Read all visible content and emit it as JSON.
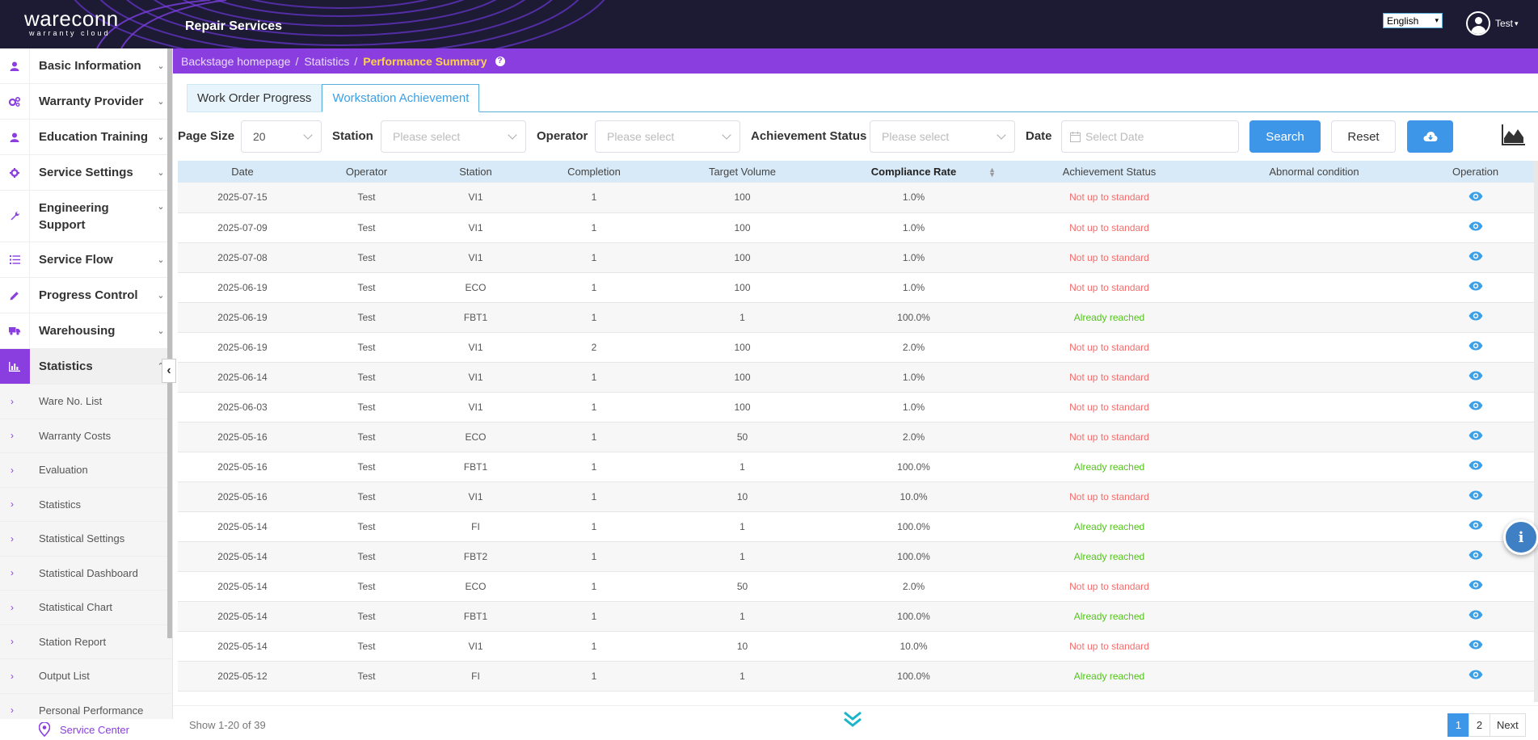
{
  "header": {
    "brand": "wareconn",
    "brand_sub": "warranty cloud",
    "app_title": "Repair Services",
    "language": "English",
    "user": "Test"
  },
  "sidebar": {
    "items": [
      {
        "label": "Basic Information",
        "icon": "user-icon"
      },
      {
        "label": "Warranty Provider",
        "icon": "gears-icon"
      },
      {
        "label": "Education Training",
        "icon": "user-icon"
      },
      {
        "label": "Service Settings",
        "icon": "gear-icon"
      },
      {
        "label": "Engineering Support",
        "icon": "wrench-icon"
      },
      {
        "label": "Service Flow",
        "icon": "list-icon"
      },
      {
        "label": "Progress Control",
        "icon": "pencil-icon"
      },
      {
        "label": "Warehousing",
        "icon": "truck-icon"
      },
      {
        "label": "Statistics",
        "icon": "bar-chart-icon"
      }
    ],
    "sub_items": [
      "Ware No. List",
      "Warranty Costs",
      "Evaluation",
      "Statistics",
      "Statistical Settings",
      "Statistical Dashboard",
      "Statistical Chart",
      "Station Report",
      "Output List",
      "Personal Performance"
    ],
    "service_center": "Service Center"
  },
  "breadcrumb": {
    "home": "Backstage homepage",
    "parent": "Statistics",
    "current": "Performance Summary",
    "help": "?"
  },
  "tabs": [
    "Work Order Progress",
    "Workstation Achievement"
  ],
  "filters": {
    "page_size_label": "Page Size",
    "page_size_value": "20",
    "station_label": "Station",
    "station_placeholder": "Please select",
    "operator_label": "Operator",
    "operator_placeholder": "Please select",
    "status_label": "Achievement Status",
    "status_placeholder": "Please select",
    "date_label": "Date",
    "date_placeholder": "Select Date",
    "search_label": "Search",
    "reset_label": "Reset"
  },
  "table": {
    "columns": [
      "Date",
      "Operator",
      "Station",
      "Completion",
      "Target Volume",
      "Compliance Rate",
      "Achievement Status",
      "Abnormal condition",
      "Operation"
    ],
    "rows": [
      {
        "date": "2025-07-15",
        "operator": "Test",
        "station": "VI1",
        "completion": "1",
        "target": "100",
        "rate": "1.0%",
        "status": "Not up to standard",
        "ok": false
      },
      {
        "date": "2025-07-09",
        "operator": "Test",
        "station": "VI1",
        "completion": "1",
        "target": "100",
        "rate": "1.0%",
        "status": "Not up to standard",
        "ok": false
      },
      {
        "date": "2025-07-08",
        "operator": "Test",
        "station": "VI1",
        "completion": "1",
        "target": "100",
        "rate": "1.0%",
        "status": "Not up to standard",
        "ok": false
      },
      {
        "date": "2025-06-19",
        "operator": "Test",
        "station": "ECO",
        "completion": "1",
        "target": "100",
        "rate": "1.0%",
        "status": "Not up to standard",
        "ok": false
      },
      {
        "date": "2025-06-19",
        "operator": "Test",
        "station": "FBT1",
        "completion": "1",
        "target": "1",
        "rate": "100.0%",
        "status": "Already reached",
        "ok": true
      },
      {
        "date": "2025-06-19",
        "operator": "Test",
        "station": "VI1",
        "completion": "2",
        "target": "100",
        "rate": "2.0%",
        "status": "Not up to standard",
        "ok": false
      },
      {
        "date": "2025-06-14",
        "operator": "Test",
        "station": "VI1",
        "completion": "1",
        "target": "100",
        "rate": "1.0%",
        "status": "Not up to standard",
        "ok": false
      },
      {
        "date": "2025-06-03",
        "operator": "Test",
        "station": "VI1",
        "completion": "1",
        "target": "100",
        "rate": "1.0%",
        "status": "Not up to standard",
        "ok": false
      },
      {
        "date": "2025-05-16",
        "operator": "Test",
        "station": "ECO",
        "completion": "1",
        "target": "50",
        "rate": "2.0%",
        "status": "Not up to standard",
        "ok": false
      },
      {
        "date": "2025-05-16",
        "operator": "Test",
        "station": "FBT1",
        "completion": "1",
        "target": "1",
        "rate": "100.0%",
        "status": "Already reached",
        "ok": true
      },
      {
        "date": "2025-05-16",
        "operator": "Test",
        "station": "VI1",
        "completion": "1",
        "target": "10",
        "rate": "10.0%",
        "status": "Not up to standard",
        "ok": false
      },
      {
        "date": "2025-05-14",
        "operator": "Test",
        "station": "FI",
        "completion": "1",
        "target": "1",
        "rate": "100.0%",
        "status": "Already reached",
        "ok": true
      },
      {
        "date": "2025-05-14",
        "operator": "Test",
        "station": "FBT2",
        "completion": "1",
        "target": "1",
        "rate": "100.0%",
        "status": "Already reached",
        "ok": true
      },
      {
        "date": "2025-05-14",
        "operator": "Test",
        "station": "ECO",
        "completion": "1",
        "target": "50",
        "rate": "2.0%",
        "status": "Not up to standard",
        "ok": false
      },
      {
        "date": "2025-05-14",
        "operator": "Test",
        "station": "FBT1",
        "completion": "1",
        "target": "1",
        "rate": "100.0%",
        "status": "Already reached",
        "ok": true
      },
      {
        "date": "2025-05-14",
        "operator": "Test",
        "station": "VI1",
        "completion": "1",
        "target": "10",
        "rate": "10.0%",
        "status": "Not up to standard",
        "ok": false
      },
      {
        "date": "2025-05-12",
        "operator": "Test",
        "station": "FI",
        "completion": "1",
        "target": "1",
        "rate": "100.0%",
        "status": "Already reached",
        "ok": true
      }
    ]
  },
  "footer": {
    "show_count": "Show 1-20 of 39",
    "pages": [
      "1",
      "2"
    ],
    "next": "Next"
  },
  "colors": {
    "accent": "#8a3ee0",
    "primary": "#3d96e8",
    "header_bg": "#1c1b33",
    "bad": "#f56c6c",
    "good": "#52c41a"
  }
}
